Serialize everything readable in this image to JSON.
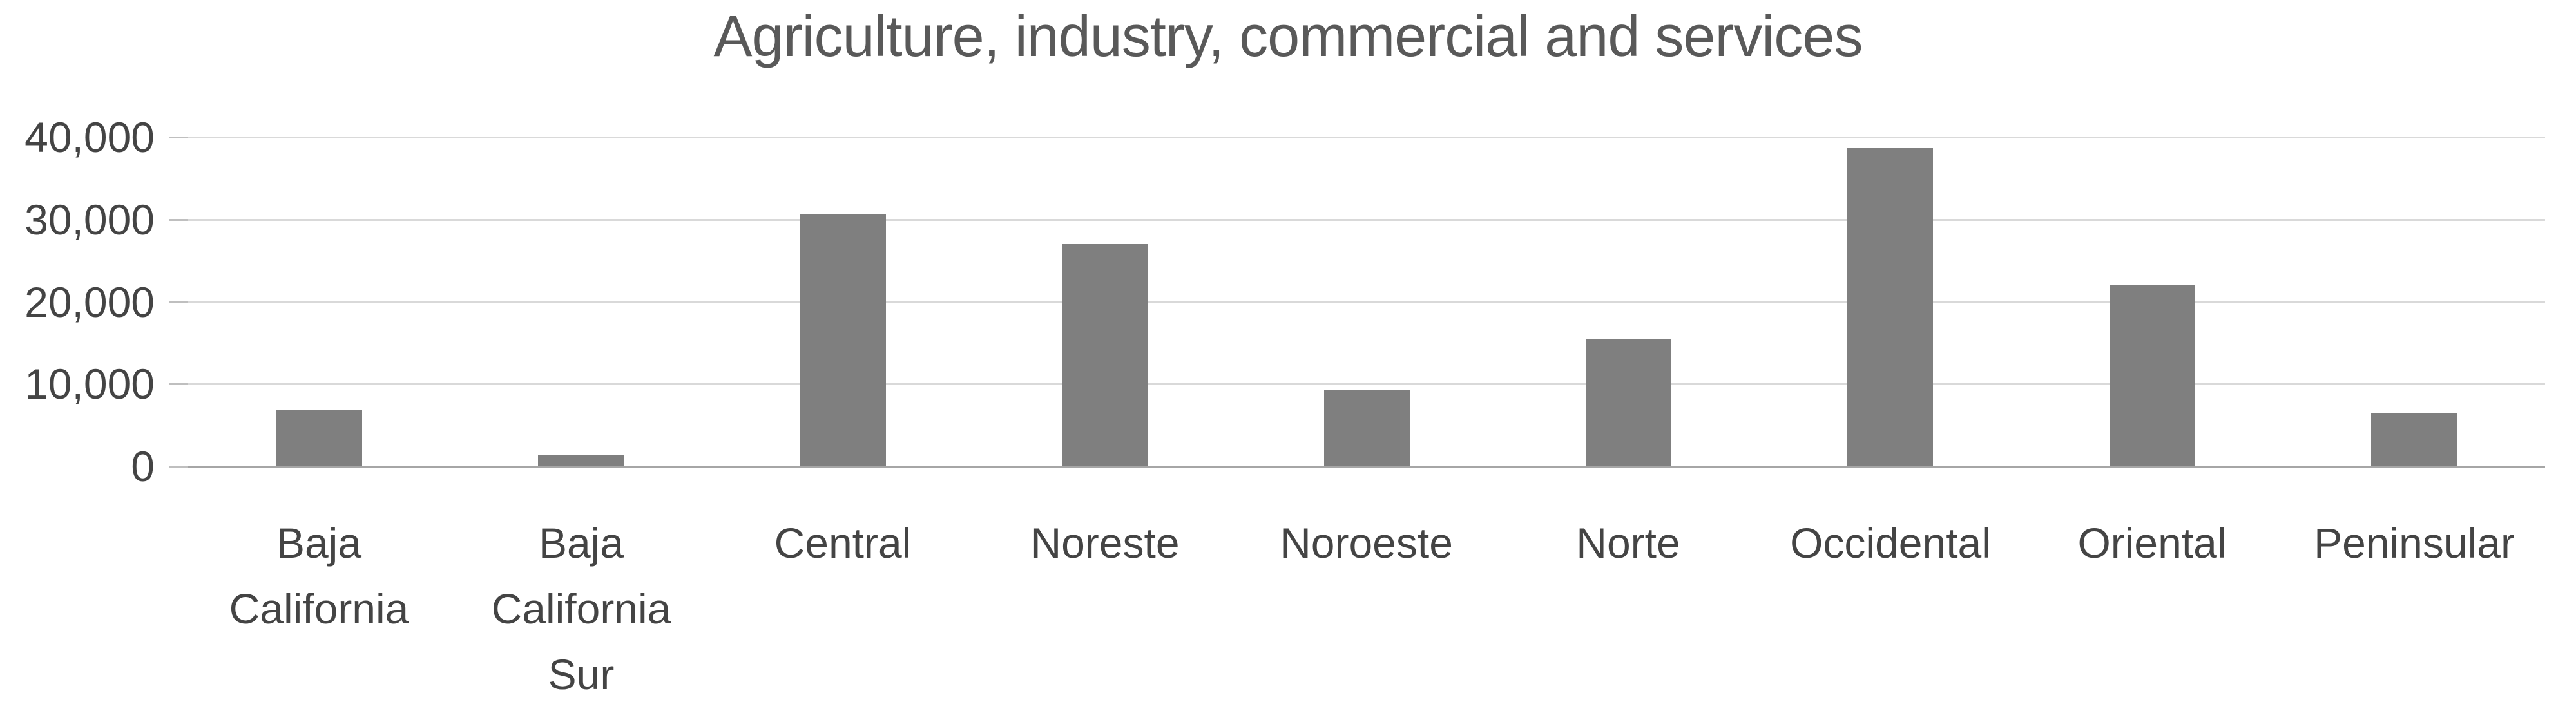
{
  "chart_data": {
    "type": "bar",
    "title": "Agriculture, industry, commercial and services",
    "categories": [
      "Baja California",
      "Baja California Sur",
      "Central",
      "Noreste",
      "Noroeste",
      "Norte",
      "Occidental",
      "Oriental",
      "Peninsular"
    ],
    "values": [
      6800,
      1300,
      30600,
      27000,
      9300,
      15500,
      38700,
      22100,
      6400
    ],
    "series": [
      {
        "name": "Agriculture, industry, commercial and services",
        "values": [
          6800,
          1300,
          30600,
          27000,
          9300,
          15500,
          38700,
          22100,
          6400
        ]
      }
    ],
    "xlabel": "",
    "ylabel": "",
    "ylim": [
      0,
      40000
    ],
    "ytick_interval": 10000,
    "ytick_labels": [
      "0",
      "10,000",
      "20,000",
      "30,000",
      "40,000"
    ],
    "grid": true,
    "legend": false,
    "colors": {
      "bar": "#7f7f7f",
      "gridline": "#d9d9d9",
      "axis_line": "#a6a6a6",
      "tick_mark": "#bfbfbf",
      "title_text": "#595959",
      "axis_text": "#444444",
      "background": "#ffffff"
    }
  }
}
